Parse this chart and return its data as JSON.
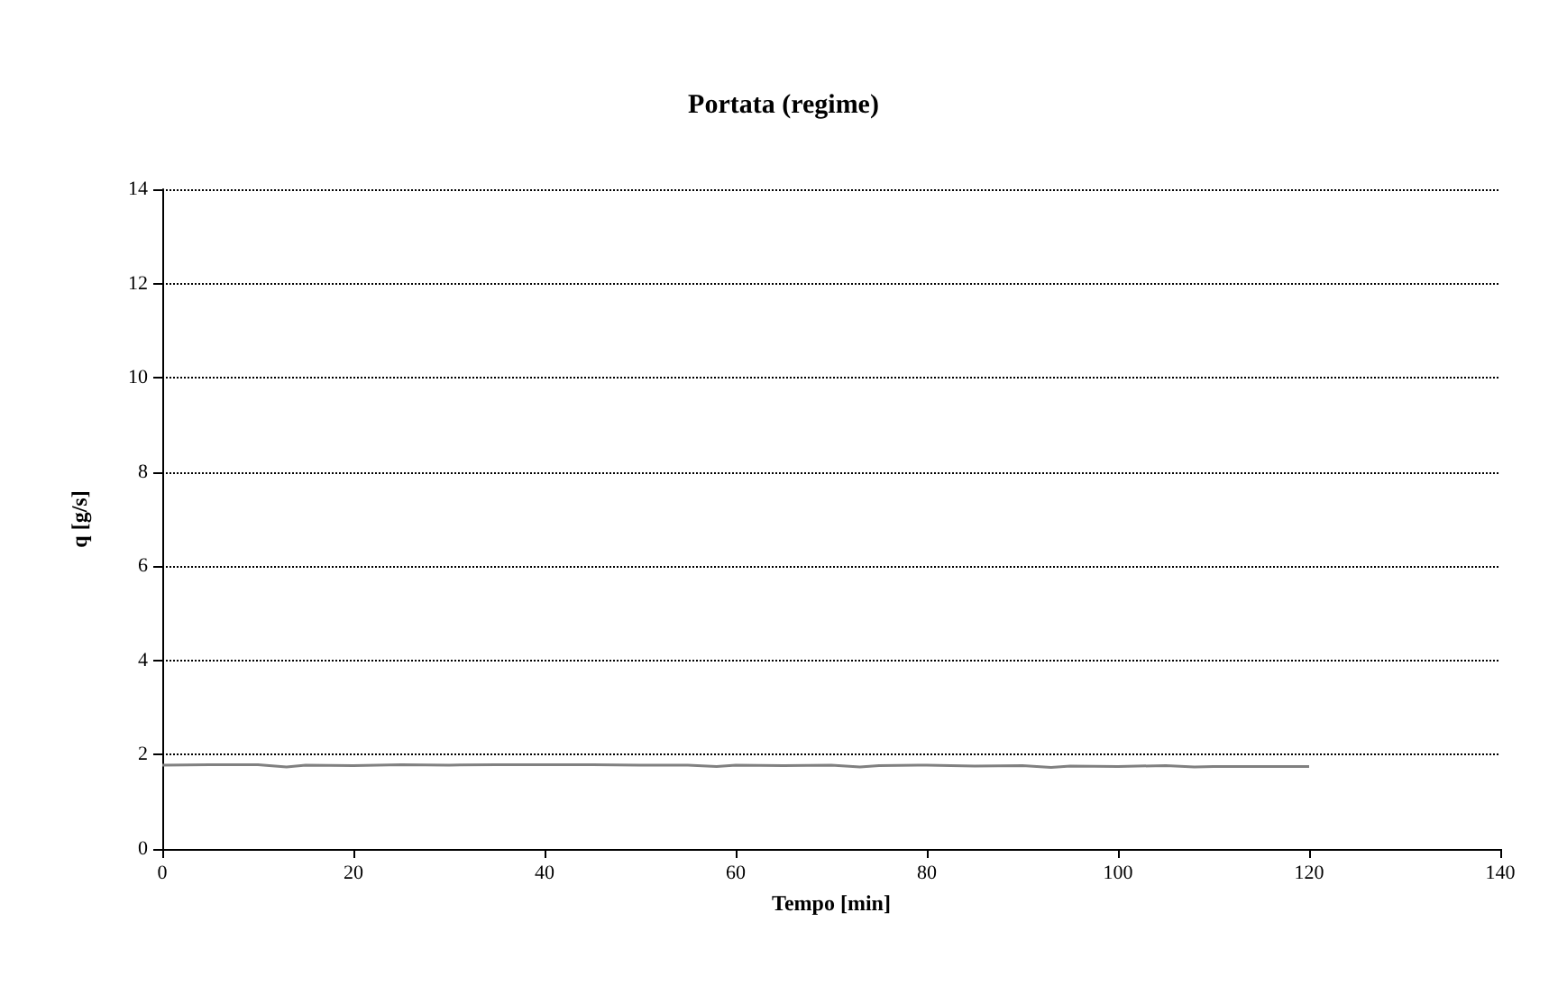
{
  "chart_data": {
    "type": "line",
    "title": "Portata (regime)",
    "xlabel": "Tempo [min]",
    "ylabel": "q [g/s]",
    "x": [
      0,
      5,
      10,
      13,
      15,
      20,
      25,
      30,
      35,
      40,
      45,
      50,
      55,
      58,
      60,
      65,
      70,
      73,
      75,
      80,
      85,
      90,
      93,
      95,
      100,
      105,
      108,
      110,
      115,
      120
    ],
    "series": [
      {
        "color": "#808080",
        "values": [
          1.78,
          1.79,
          1.79,
          1.74,
          1.78,
          1.77,
          1.79,
          1.78,
          1.79,
          1.79,
          1.79,
          1.78,
          1.78,
          1.75,
          1.78,
          1.77,
          1.78,
          1.74,
          1.77,
          1.78,
          1.76,
          1.77,
          1.73,
          1.76,
          1.75,
          1.77,
          1.74,
          1.75,
          1.75,
          1.75
        ]
      }
    ],
    "xlim": [
      0,
      140
    ],
    "xticks": [
      0,
      20,
      40,
      60,
      80,
      100,
      120,
      140
    ],
    "ylim": [
      0,
      14
    ],
    "yticks": [
      0,
      2,
      4,
      6,
      8,
      10,
      12,
      14
    ],
    "grid": "y",
    "marker": "none",
    "line_style": "solid"
  }
}
